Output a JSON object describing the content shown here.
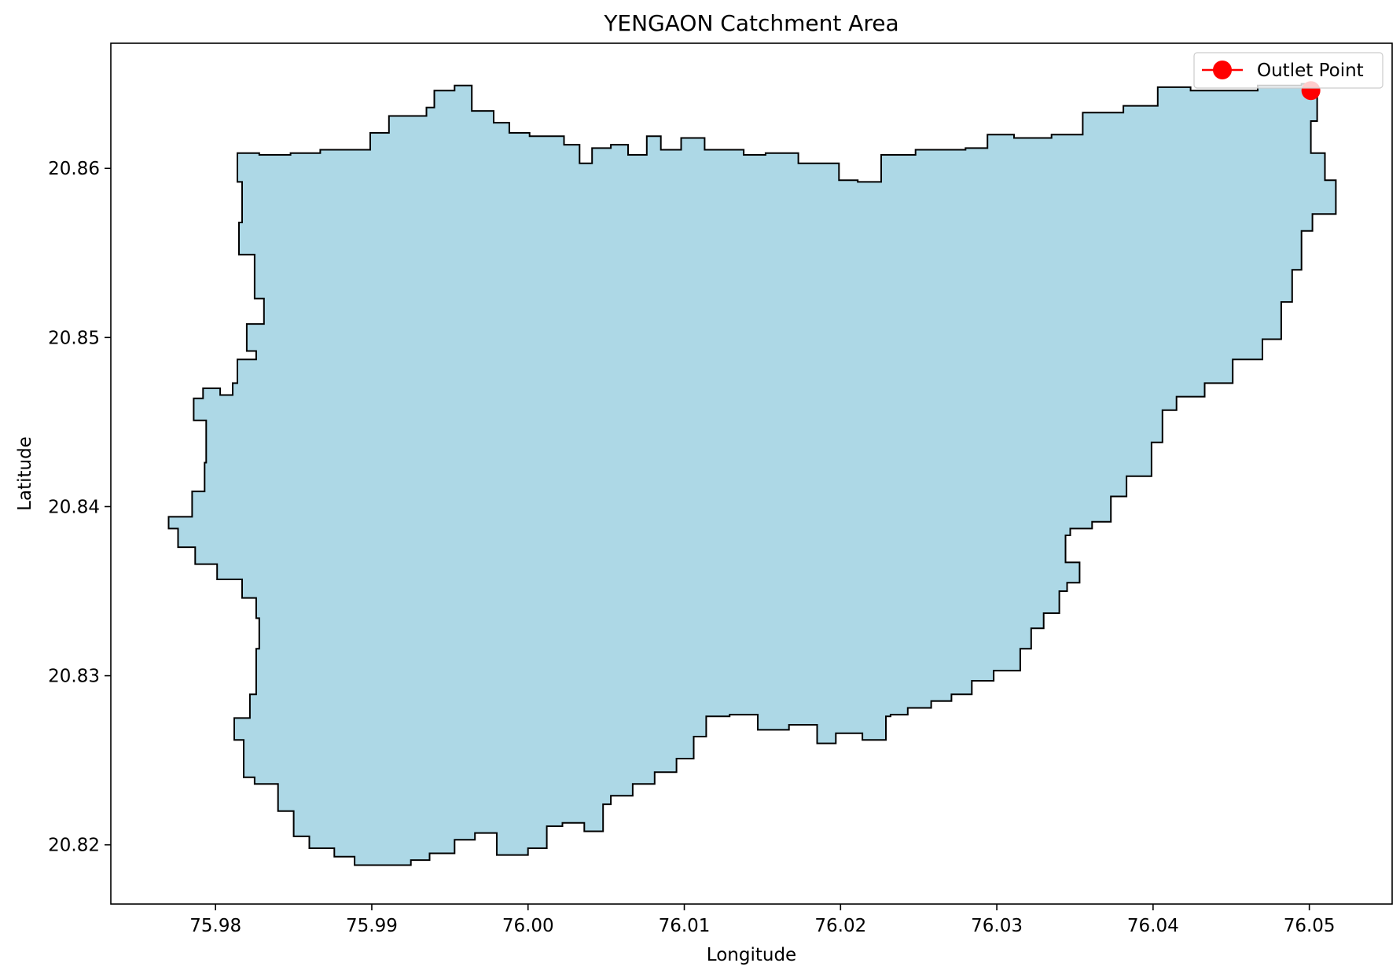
{
  "chart_data": {
    "type": "map",
    "title": "YENGAON Catchment Area",
    "xlabel": "Longitude",
    "ylabel": "Latitude",
    "xlim": [
      75.9733,
      76.0553
    ],
    "ylim": [
      20.8165,
      20.8674
    ],
    "xticks": [
      {
        "value": 75.98,
        "label": "75.98"
      },
      {
        "value": 75.99,
        "label": "75.99"
      },
      {
        "value": 76.0,
        "label": "76.00"
      },
      {
        "value": 76.01,
        "label": "76.01"
      },
      {
        "value": 76.02,
        "label": "76.02"
      },
      {
        "value": 76.03,
        "label": "76.03"
      },
      {
        "value": 76.04,
        "label": "76.04"
      },
      {
        "value": 76.05,
        "label": "76.05"
      }
    ],
    "yticks": [
      {
        "value": 20.82,
        "label": "20.82"
      },
      {
        "value": 20.83,
        "label": "20.83"
      },
      {
        "value": 20.84,
        "label": "20.84"
      },
      {
        "value": 20.85,
        "label": "20.85"
      },
      {
        "value": 20.86,
        "label": "20.86"
      }
    ],
    "grid": false,
    "legend": {
      "position": "top-right",
      "entries": [
        {
          "label": "Outlet Point",
          "color": "#ff0000",
          "marker": "circle"
        }
      ]
    },
    "catchment": {
      "fill_color": "#add8e6",
      "edge_color": "#000000",
      "boundary": [
        [
          75.9953,
          20.8649
        ],
        [
          75.9964,
          20.8634
        ],
        [
          75.9978,
          20.8627
        ],
        [
          75.9988,
          20.8621
        ],
        [
          76.0001,
          20.8619
        ],
        [
          76.0023,
          20.8614
        ],
        [
          76.0033,
          20.8603
        ],
        [
          76.0041,
          20.8612
        ],
        [
          76.0053,
          20.8614
        ],
        [
          76.0064,
          20.8608
        ],
        [
          76.0076,
          20.8619
        ],
        [
          76.0085,
          20.8611
        ],
        [
          76.0098,
          20.8618
        ],
        [
          76.0113,
          20.8611
        ],
        [
          76.0124,
          20.8611
        ],
        [
          76.0138,
          20.8608
        ],
        [
          76.0152,
          20.8609
        ],
        [
          76.0173,
          20.8603
        ],
        [
          76.0199,
          20.8593
        ],
        [
          76.0211,
          20.8592
        ],
        [
          76.0226,
          20.8608
        ],
        [
          76.0248,
          20.8611
        ],
        [
          76.0265,
          20.8611
        ],
        [
          76.028,
          20.8612
        ],
        [
          76.0294,
          20.862
        ],
        [
          76.0311,
          20.8618
        ],
        [
          76.0335,
          20.862
        ],
        [
          76.0355,
          20.8633
        ],
        [
          76.0381,
          20.8637
        ],
        [
          76.0403,
          20.8648
        ],
        [
          76.0424,
          20.8646
        ],
        [
          76.0441,
          20.8646
        ],
        [
          76.0467,
          20.8649
        ],
        [
          76.0495,
          20.865
        ],
        [
          76.0502,
          20.8645
        ],
        [
          76.0505,
          20.8628
        ],
        [
          76.0501,
          20.8609
        ],
        [
          76.051,
          20.8593
        ],
        [
          76.0517,
          20.8573
        ],
        [
          76.0502,
          20.8563
        ],
        [
          76.0495,
          20.854
        ],
        [
          76.0489,
          20.8521
        ],
        [
          76.0482,
          20.8499
        ],
        [
          76.047,
          20.8487
        ],
        [
          76.0451,
          20.8473
        ],
        [
          76.0433,
          20.8465
        ],
        [
          76.0415,
          20.8457
        ],
        [
          76.0406,
          20.8438
        ],
        [
          76.0399,
          20.8418
        ],
        [
          76.0383,
          20.8406
        ],
        [
          76.0373,
          20.8391
        ],
        [
          76.0361,
          20.8387
        ],
        [
          76.0347,
          20.8383
        ],
        [
          76.0344,
          20.8367
        ],
        [
          76.0353,
          20.8355
        ],
        [
          76.0345,
          20.835
        ],
        [
          76.034,
          20.8337
        ],
        [
          76.033,
          20.8328
        ],
        [
          76.0322,
          20.8316
        ],
        [
          76.0315,
          20.8303
        ],
        [
          76.0298,
          20.8297
        ],
        [
          76.0284,
          20.8289
        ],
        [
          76.0271,
          20.8285
        ],
        [
          76.0258,
          20.8281
        ],
        [
          76.0243,
          20.8277
        ],
        [
          76.0232,
          20.8276
        ],
        [
          76.0229,
          20.8262
        ],
        [
          76.0214,
          20.8266
        ],
        [
          76.0197,
          20.826
        ],
        [
          76.0185,
          20.8271
        ],
        [
          76.0167,
          20.8268
        ],
        [
          76.0147,
          20.8277
        ],
        [
          76.0129,
          20.8276
        ],
        [
          76.0114,
          20.8264
        ],
        [
          76.0106,
          20.8251
        ],
        [
          76.0095,
          20.8243
        ],
        [
          76.0081,
          20.8236
        ],
        [
          76.0067,
          20.8229
        ],
        [
          76.0053,
          20.8224
        ],
        [
          76.0048,
          20.8208
        ],
        [
          76.0036,
          20.8213
        ],
        [
          76.0022,
          20.8211
        ],
        [
          76.0012,
          20.8198
        ],
        [
          76.0,
          20.8194
        ],
        [
          75.998,
          20.8207
        ],
        [
          75.9966,
          20.8203
        ],
        [
          75.9953,
          20.8195
        ],
        [
          75.9937,
          20.8191
        ],
        [
          75.9925,
          20.8188
        ],
        [
          75.9908,
          20.8188
        ],
        [
          75.9889,
          20.8193
        ],
        [
          75.9876,
          20.8198
        ],
        [
          75.986,
          20.8205
        ],
        [
          75.985,
          20.822
        ],
        [
          75.984,
          20.8236
        ],
        [
          75.9825,
          20.824
        ],
        [
          75.9818,
          20.8262
        ],
        [
          75.9812,
          20.8275
        ],
        [
          75.9822,
          20.8289
        ],
        [
          75.9826,
          20.8316
        ],
        [
          75.9828,
          20.8334
        ],
        [
          75.9826,
          20.8346
        ],
        [
          75.9817,
          20.8357
        ],
        [
          75.9801,
          20.8366
        ],
        [
          75.9787,
          20.8376
        ],
        [
          75.9776,
          20.8387
        ],
        [
          75.977,
          20.8394
        ],
        [
          75.9785,
          20.8409
        ],
        [
          75.9793,
          20.8426
        ],
        [
          75.9794,
          20.8451
        ],
        [
          75.9786,
          20.8464
        ],
        [
          75.9792,
          20.847
        ],
        [
          75.9803,
          20.8466
        ],
        [
          75.9811,
          20.8473
        ],
        [
          75.9814,
          20.8487
        ],
        [
          75.9826,
          20.8492
        ],
        [
          75.982,
          20.8508
        ],
        [
          75.9831,
          20.8523
        ],
        [
          75.9825,
          20.8549
        ],
        [
          75.9815,
          20.8568
        ],
        [
          75.9817,
          20.8592
        ],
        [
          75.9814,
          20.8609
        ],
        [
          75.9828,
          20.8608
        ],
        [
          75.9848,
          20.8609
        ],
        [
          75.9867,
          20.8611
        ],
        [
          75.9892,
          20.8611
        ],
        [
          75.9899,
          20.8621
        ],
        [
          75.9911,
          20.8631
        ],
        [
          75.9935,
          20.8636
        ],
        [
          75.994,
          20.8646
        ]
      ]
    },
    "outlet_point": {
      "label": "Outlet Point",
      "lon": 76.0501,
      "lat": 20.8646,
      "color": "#ff0000"
    }
  }
}
